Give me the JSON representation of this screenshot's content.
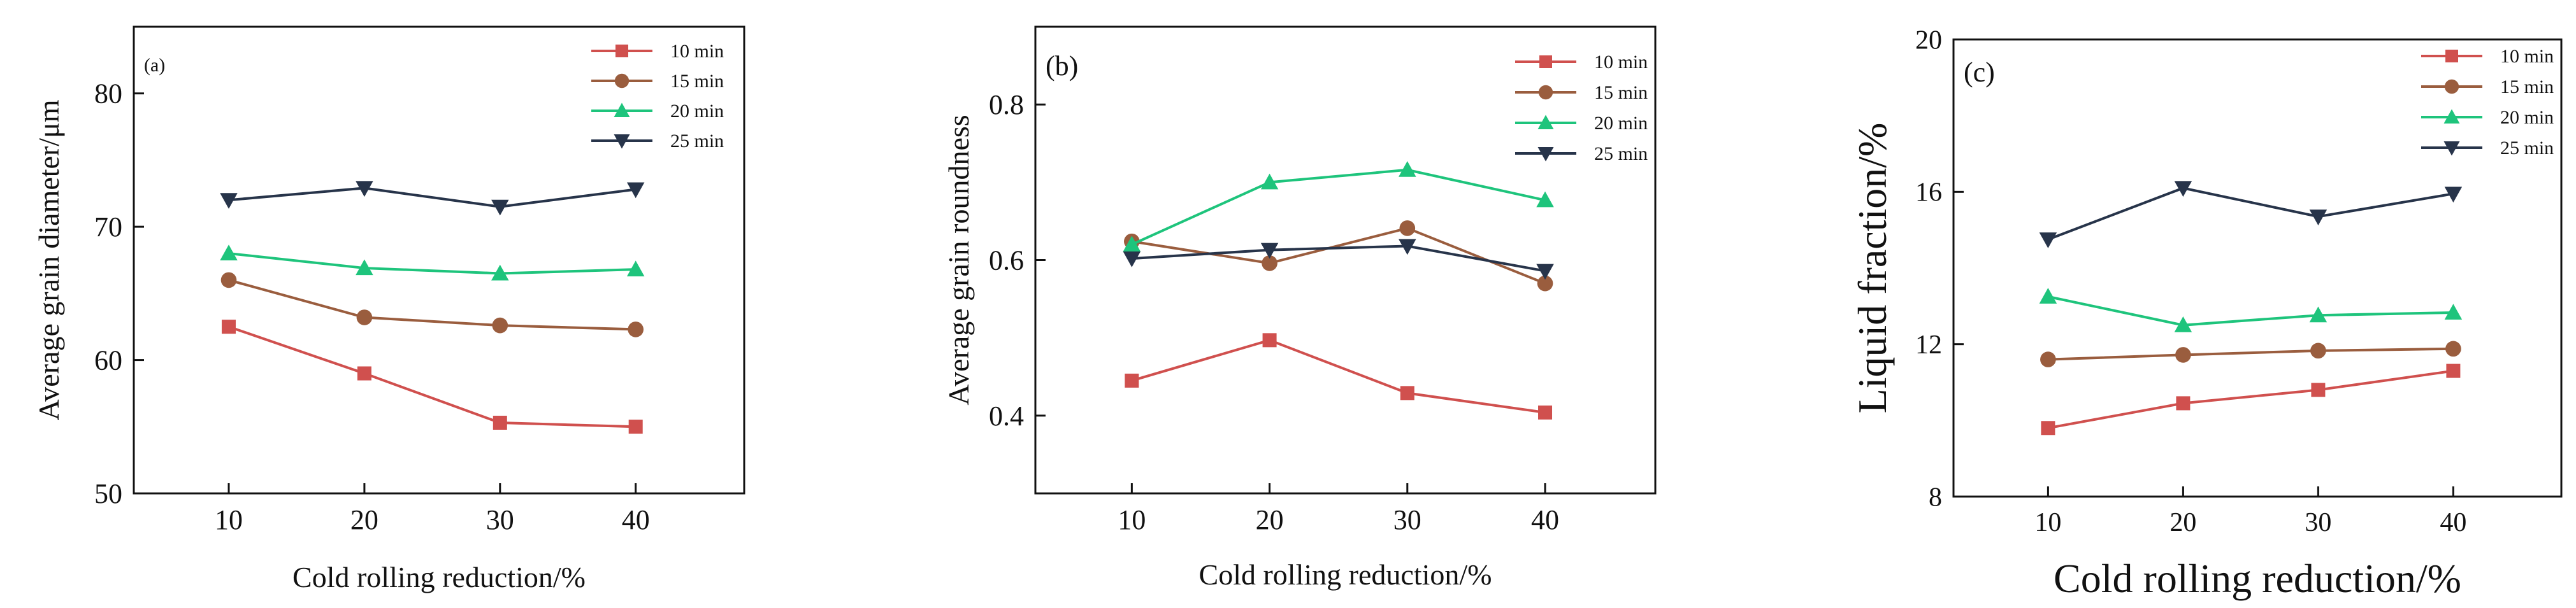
{
  "chart_data": [
    {
      "type": "line",
      "panel_label": "(a)",
      "title": "",
      "xlabel": "Cold rolling reduction/%",
      "ylabel": "Average grain diameter/μm",
      "x": [
        10,
        20,
        30,
        40
      ],
      "xlim": [
        3,
        48
      ],
      "ylim": [
        50,
        85
      ],
      "xticks": [
        "10",
        "20",
        "30",
        "40"
      ],
      "yticks": [
        "50",
        "60",
        "70",
        "80"
      ],
      "ytick_values": [
        50,
        60,
        70,
        80
      ],
      "legend_position": "top-right",
      "grid": false,
      "series": [
        {
          "name": "10 min",
          "marker": "square",
          "color": "#d0504e",
          "values": [
            62.5,
            59.0,
            55.3,
            55.0
          ]
        },
        {
          "name": "15 min",
          "marker": "circle",
          "color": "#9a5d3e",
          "values": [
            66.0,
            63.2,
            62.6,
            62.3
          ]
        },
        {
          "name": "20 min",
          "marker": "triangle",
          "color": "#1ec47c",
          "values": [
            68.0,
            66.9,
            66.5,
            66.8
          ]
        },
        {
          "name": "25 min",
          "marker": "tri-down",
          "color": "#27344a",
          "values": [
            72.0,
            72.9,
            71.5,
            72.8
          ]
        }
      ]
    },
    {
      "type": "line",
      "panel_label": "(b)",
      "title": "",
      "xlabel": "Cold rolling reduction/%",
      "ylabel": "Average grain roundness",
      "x": [
        10,
        20,
        30,
        40
      ],
      "xlim": [
        3,
        48
      ],
      "ylim": [
        0.3,
        0.9
      ],
      "xticks": [
        "10",
        "20",
        "30",
        "40"
      ],
      "yticks": [
        "0.4",
        "0.6",
        "0.8"
      ],
      "ytick_values": [
        0.4,
        0.6,
        0.8
      ],
      "legend_position": "top-right",
      "grid": false,
      "series": [
        {
          "name": "10 min",
          "marker": "square",
          "color": "#d0504e",
          "values": [
            0.445,
            0.497,
            0.429,
            0.404
          ]
        },
        {
          "name": "15 min",
          "marker": "circle",
          "color": "#9a5d3e",
          "values": [
            0.624,
            0.596,
            0.641,
            0.57
          ]
        },
        {
          "name": "20 min",
          "marker": "triangle",
          "color": "#1ec47c",
          "values": [
            0.62,
            0.7,
            0.716,
            0.677
          ]
        },
        {
          "name": "25 min",
          "marker": "tri-down",
          "color": "#27344a",
          "values": [
            0.602,
            0.613,
            0.618,
            0.586
          ]
        }
      ]
    },
    {
      "type": "line",
      "panel_label": "(c)",
      "title": "",
      "xlabel": "Cold rolling reduction/%",
      "ylabel": "Liquid fraction/%",
      "x": [
        10,
        20,
        30,
        40
      ],
      "xlim": [
        3,
        48
      ],
      "ylim": [
        8,
        20
      ],
      "xticks": [
        "10",
        "20",
        "30",
        "40"
      ],
      "yticks": [
        "8",
        "12",
        "16",
        "20"
      ],
      "ytick_values": [
        8,
        12,
        16,
        20
      ],
      "legend_position": "top-right",
      "grid": false,
      "series": [
        {
          "name": "10 min",
          "marker": "square",
          "color": "#d0504e",
          "values": [
            9.8,
            10.45,
            10.8,
            11.3
          ]
        },
        {
          "name": "15 min",
          "marker": "circle",
          "color": "#9a5d3e",
          "values": [
            11.6,
            11.72,
            11.83,
            11.88
          ]
        },
        {
          "name": "20 min",
          "marker": "triangle",
          "color": "#1ec47c",
          "values": [
            13.25,
            12.5,
            12.76,
            12.83
          ]
        },
        {
          "name": "25 min",
          "marker": "tri-down",
          "color": "#27344a",
          "values": [
            14.75,
            16.1,
            15.35,
            15.95
          ]
        }
      ]
    }
  ]
}
